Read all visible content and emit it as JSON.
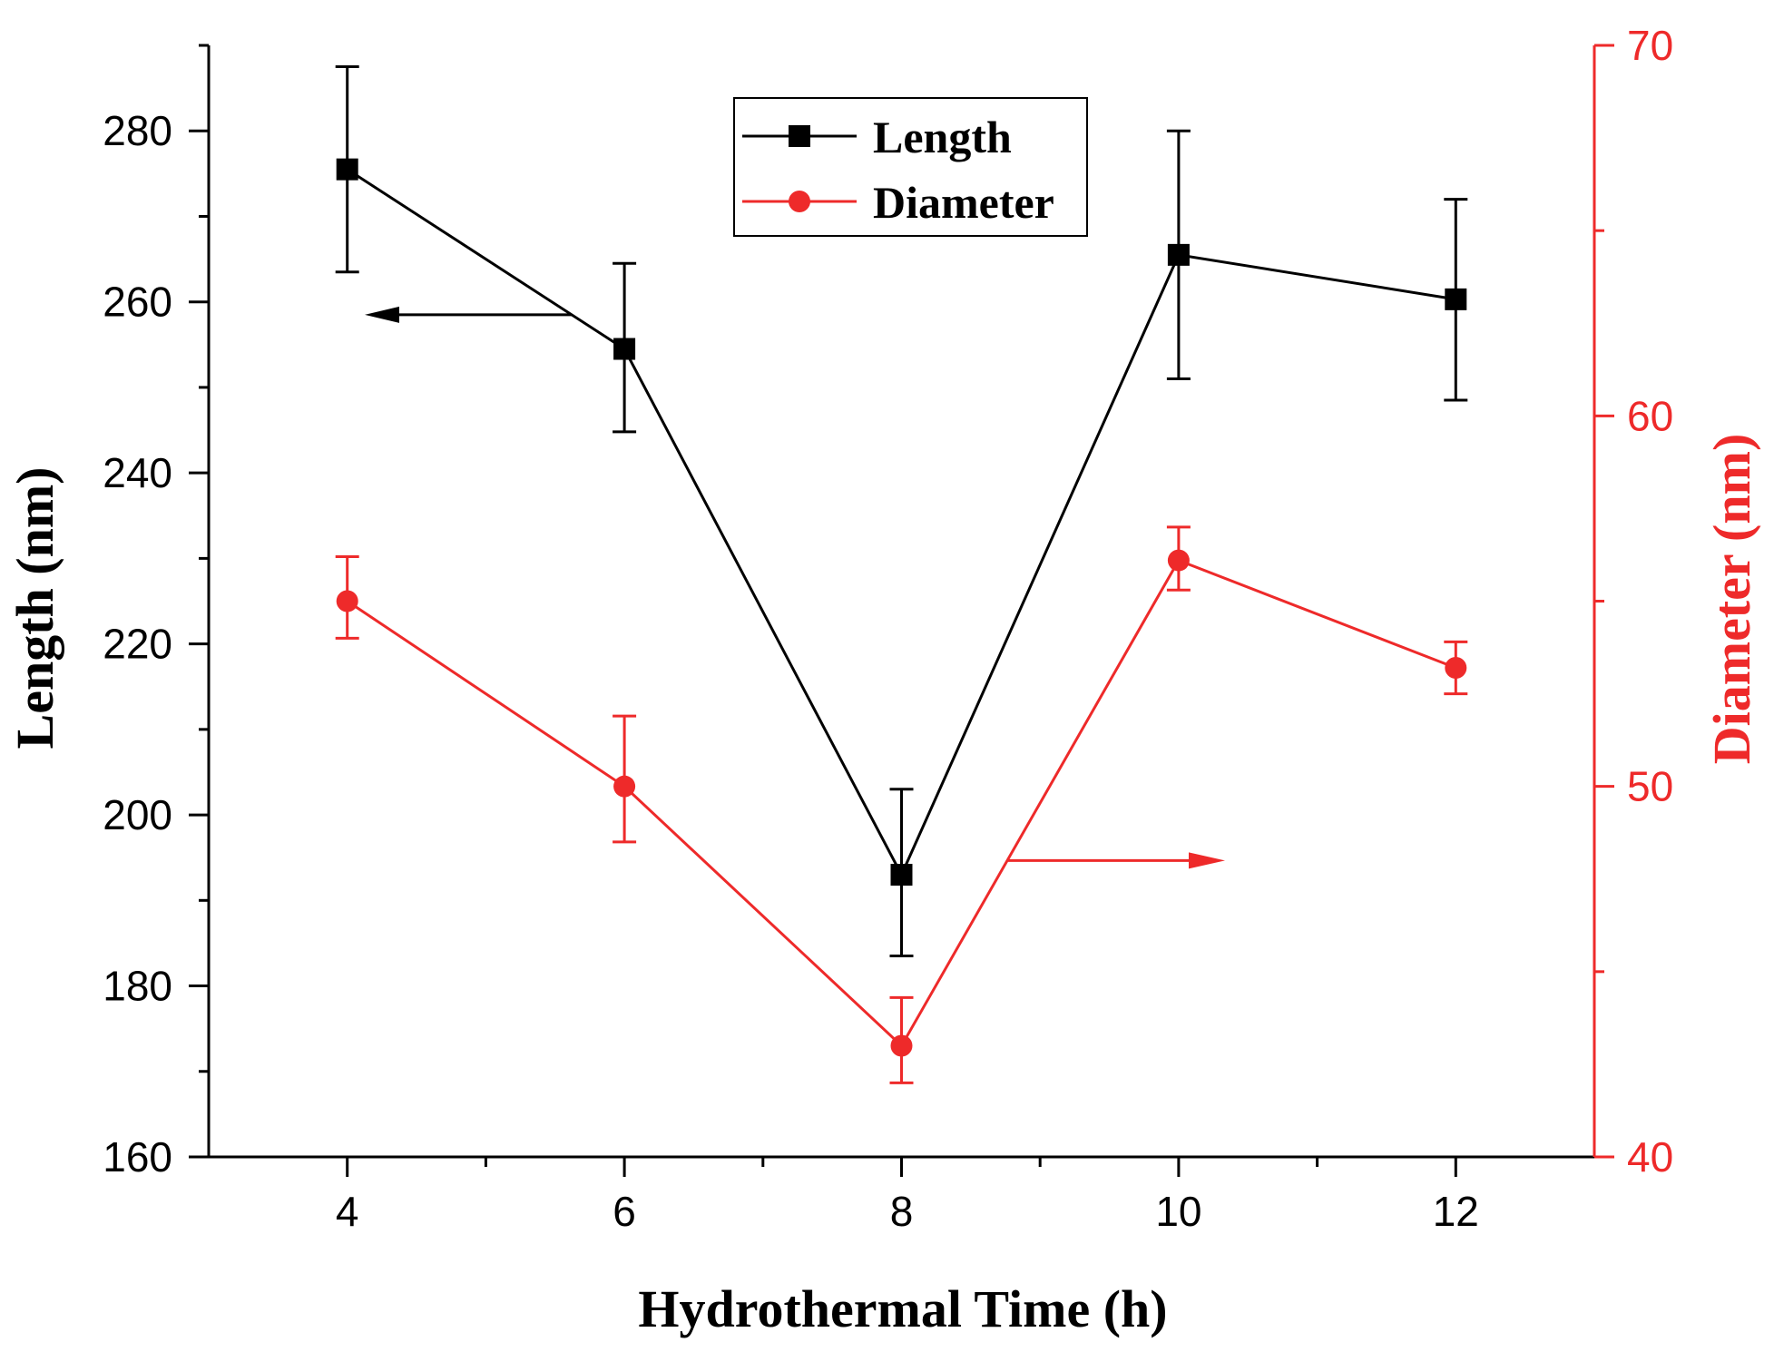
{
  "chart_data": {
    "type": "line",
    "title": "",
    "xlabel": "Hydrothermal Time (h)",
    "x": [
      4,
      6,
      8,
      10,
      12
    ],
    "xlim": [
      3,
      13
    ],
    "xticks": [
      4,
      6,
      8,
      10,
      12
    ],
    "left_axis": {
      "label": "Length (nm)",
      "lim": [
        160,
        290
      ],
      "ticks": [
        160,
        180,
        200,
        220,
        240,
        260,
        280
      ],
      "color": "#000000"
    },
    "right_axis": {
      "label": "Diameter (nm)",
      "lim": [
        40,
        70
      ],
      "ticks": [
        40,
        50,
        60,
        70
      ],
      "color": "#ee2a2a"
    },
    "series": [
      {
        "name": "Length",
        "axis": "left",
        "marker": "square",
        "color": "#000000",
        "values": [
          275.5,
          254.5,
          193.0,
          265.5,
          260.3
        ],
        "err_upper": [
          287.5,
          264.5,
          203.0,
          280.0,
          272.0
        ],
        "err_lower": [
          263.5,
          244.8,
          183.5,
          251.0,
          248.5
        ]
      },
      {
        "name": "Diameter",
        "axis": "right",
        "marker": "circle",
        "color": "#ee2a2a",
        "values": [
          55.0,
          50.0,
          43.0,
          56.1,
          53.2
        ],
        "err_upper": [
          56.2,
          51.9,
          44.3,
          57.0,
          53.9
        ],
        "err_lower": [
          54.0,
          48.5,
          42.0,
          55.3,
          52.5
        ]
      }
    ],
    "annotations": [
      {
        "type": "arrow",
        "direction": "left",
        "axis": "left",
        "note": "Length series uses left axis"
      },
      {
        "type": "arrow",
        "direction": "right",
        "axis": "right",
        "note": "Diameter series uses right axis"
      }
    ],
    "legend": {
      "position": "top-center",
      "entries": [
        "Length",
        "Diameter"
      ]
    }
  }
}
